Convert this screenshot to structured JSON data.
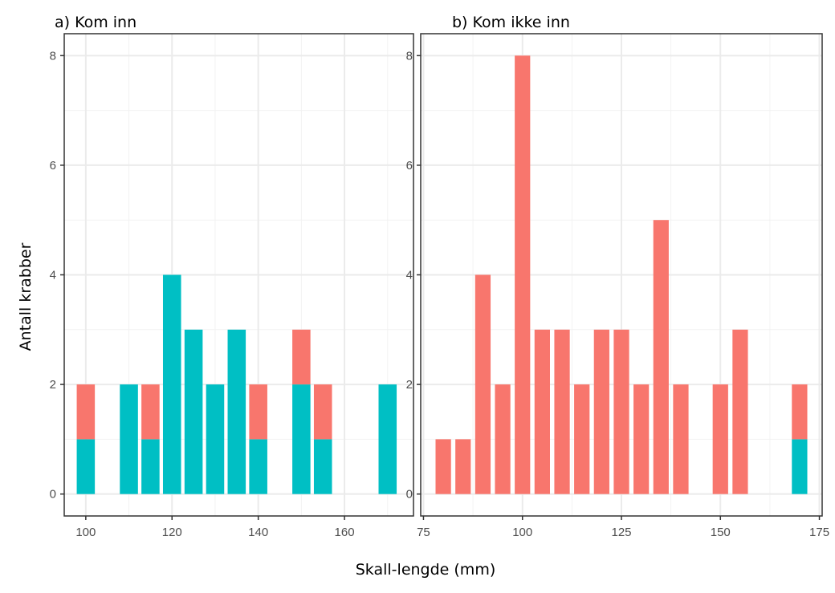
{
  "chart_data": {
    "type": "bar",
    "stacked": true,
    "xlabel": "Skall-lengde (mm)",
    "ylabel": "Antall krabber",
    "colors": {
      "red": "#F8766D",
      "teal": "#00BFC4"
    },
    "grid": true,
    "panels": [
      {
        "title": "a) Kom inn",
        "xlim": [
          95,
          176
        ],
        "ylim": [
          -0.4,
          8.4
        ],
        "xticks": [
          100,
          120,
          140,
          160
        ],
        "xminor": [
          110,
          130,
          150,
          170
        ],
        "yticks": [
          0,
          2,
          4,
          6,
          8
        ],
        "x": [
          100,
          110,
          115,
          120,
          125,
          130,
          135,
          140,
          150,
          155,
          170
        ],
        "series": [
          {
            "name": "teal",
            "values": [
              1,
              2,
              1,
              4,
              3,
              2,
              3,
              1,
              2,
              1,
              2
            ]
          },
          {
            "name": "red",
            "values": [
              1,
              0,
              1,
              0,
              0,
              0,
              0,
              1,
              1,
              1,
              0
            ]
          }
        ]
      },
      {
        "title": "b) Kom ikke inn",
        "xlim": [
          74.3,
          175.7
        ],
        "ylim": [
          -0.4,
          8.4
        ],
        "xticks": [
          75,
          100,
          125,
          150,
          175
        ],
        "xminor": [
          87.5,
          112.5,
          137.5,
          162.5
        ],
        "yticks": [
          0,
          2,
          4,
          6,
          8
        ],
        "x": [
          80,
          85,
          90,
          95,
          100,
          105,
          110,
          115,
          120,
          125,
          130,
          135,
          140,
          150,
          155,
          170
        ],
        "series": [
          {
            "name": "teal",
            "values": [
              0,
              0,
              0,
              0,
              0,
              0,
              0,
              0,
              0,
              0,
              0,
              0,
              0,
              0,
              0,
              1
            ]
          },
          {
            "name": "red",
            "values": [
              1,
              1,
              4,
              2,
              8,
              3,
              3,
              2,
              3,
              3,
              2,
              5,
              2,
              2,
              3,
              1
            ]
          }
        ]
      }
    ]
  }
}
